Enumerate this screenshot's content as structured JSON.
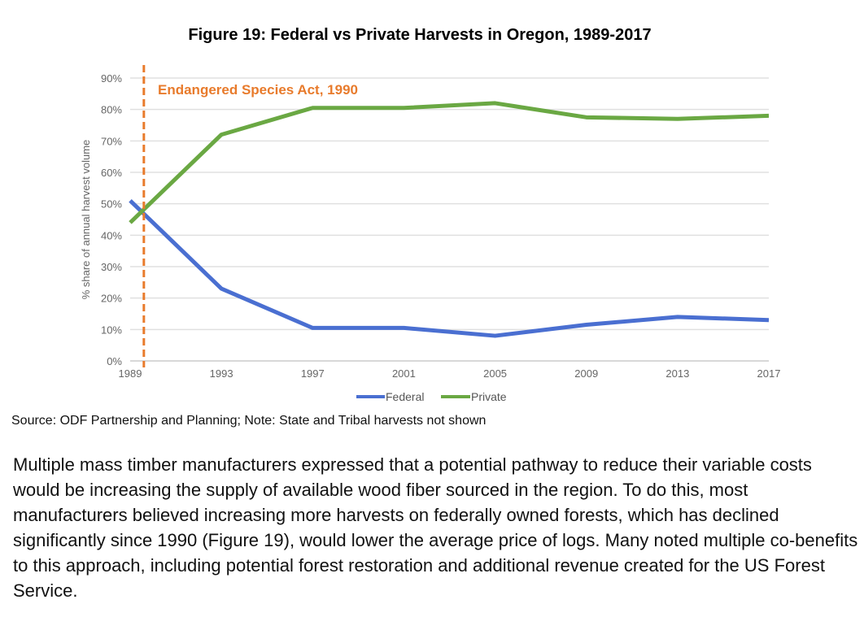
{
  "chart_data": {
    "type": "line",
    "title": "Figure 19: Federal vs Private Harvests in Oregon, 1989-2017",
    "xlabel": "",
    "ylabel": "% share of annual harvest volume",
    "x": [
      1989,
      1993,
      1997,
      2001,
      2005,
      2009,
      2013,
      2017
    ],
    "x_tick_labels": [
      "1989",
      "1993",
      "1997",
      "2001",
      "2005",
      "2009",
      "2013",
      "2017"
    ],
    "y_tick_labels": [
      "0%",
      "10%",
      "20%",
      "30%",
      "40%",
      "50%",
      "60%",
      "70%",
      "80%",
      "90%"
    ],
    "ylim": [
      0,
      90
    ],
    "grid": true,
    "legend_position": "bottom",
    "series": [
      {
        "name": "Federal",
        "color": "#4a6fd1",
        "values": [
          51,
          23,
          10.5,
          10.5,
          8,
          11.5,
          14,
          13
        ]
      },
      {
        "name": "Private",
        "color": "#6aa843",
        "values": [
          44,
          72,
          80.5,
          80.5,
          82,
          77.5,
          77,
          78
        ]
      }
    ],
    "annotation": {
      "label": "Endangered Species Act, 1990",
      "x": 1989.6,
      "color": "#e87b2c"
    }
  },
  "source": "Source: ODF Partnership and Planning; Note: State and Tribal harvests not shown",
  "paragraph": "Multiple mass timber manufacturers expressed that a potential pathway to reduce their variable costs would be increasing the supply of available wood fiber sourced in the region. To do this, most manufacturers believed increasing more harvests on federally owned forests, which has declined significantly since 1990 (Figure 19), would lower the average price of logs. Many noted multiple co-benefits to this approach, including potential forest restoration and additional revenue created for the US Forest Service."
}
